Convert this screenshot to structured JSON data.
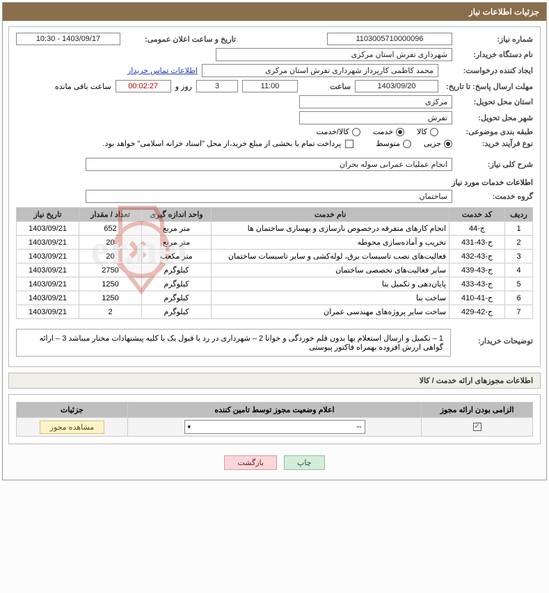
{
  "header": {
    "title": "جزئیات اطلاعات نیاز"
  },
  "form": {
    "need_number_label": "شماره نیاز:",
    "need_number": "1103005710000096",
    "public_date_label": "تاریخ و ساعت اعلان عمومی:",
    "public_date": "1403/09/17 - 10:30",
    "buyer_device_label": "نام دستگاه خریدار:",
    "buyer_device": "شهرداری تفرش استان مرکزی",
    "request_creator_label": "ایجاد کننده درخواست:",
    "request_creator": "محمد کاظمی کارپرداز شهرداری تفرش استان مرکزی",
    "buyer_contact_link": "اطلاعات تماس خریدار",
    "deadline_label": "مهلت ارسال پاسخ: تا تاریخ:",
    "deadline_date": "1403/09/20",
    "hour_label": "ساعت",
    "deadline_hour": "11:00",
    "days_val": "3",
    "days_label": "روز و",
    "countdown": "00:02:27",
    "remaining_label": "ساعت باقی مانده",
    "delivery_province_label": "استان محل تحویل:",
    "delivery_province": "مرکزی",
    "delivery_city_label": "شهر محل تحویل:",
    "delivery_city": "تفرش",
    "subject_class_label": "طبقه بندی موضوعی:",
    "radio_goods": "کالا",
    "radio_service": "خدمت",
    "radio_both": "کالا/خدمت",
    "purchase_type_label": "نوع فرآیند خرید:",
    "radio_partial": "جزیی",
    "radio_medium": "متوسط",
    "payment_note": "پرداخت تمام یا بخشی از مبلغ خرید،از محل \"اسناد خزانه اسلامی\" خواهد بود.",
    "overall_desc_label": "شرح کلی نیاز:",
    "overall_desc": "انجام عملیات عمرانی سوله بحران",
    "services_info_title": "اطلاعات خدمات مورد نیاز",
    "service_group_label": "گروه خدمت:",
    "service_group": "ساختمان",
    "buyer_notes_label": "توضیحات خریدار:",
    "buyer_notes": "1 – تکمیل و ارسال استعلام بها بدون قلم خوردگی و خوانا 2 – شهرداری در رد یا قبول یک یا کلیه پیشنهادات مختار میباشد 3 – ارائه گواهی ارزش افزوده بهمراه فاکتور پیوستی"
  },
  "table": {
    "headers": {
      "row": "ردیف",
      "code": "کد خدمت",
      "name": "نام خدمت",
      "unit": "واحد اندازه گیری",
      "qty": "تعداد / مقدار",
      "date": "تاریخ نیاز"
    },
    "rows": [
      {
        "n": "1",
        "code": "ج-44",
        "name": "انجام کارهای متفرقه درخصوص بازسازی و بهسازی ساختمان ها",
        "unit": "متر مربع",
        "qty": "652",
        "date": "1403/09/21"
      },
      {
        "n": "2",
        "code": "ج-43-431",
        "name": "تخریب و آماده‌سازی محوطه",
        "unit": "متر مربع",
        "qty": "20",
        "date": "1403/09/21"
      },
      {
        "n": "3",
        "code": "ج-43-432",
        "name": "فعالیت‌های نصب تاسیسات برق، لوله‌کشی و سایر تاسیسات ساختمان",
        "unit": "متر مکعب",
        "qty": "20",
        "date": "1403/09/21"
      },
      {
        "n": "4",
        "code": "ج-43-439",
        "name": "سایر فعالیت‌های تخصصی ساختمان",
        "unit": "کیلوگرم",
        "qty": "2750",
        "date": "1403/09/21"
      },
      {
        "n": "5",
        "code": "ج-43-433",
        "name": "پایان‌دهی و تکمیل بنا",
        "unit": "کیلوگرم",
        "qty": "1250",
        "date": "1403/09/21"
      },
      {
        "n": "6",
        "code": "ج-41-410",
        "name": "ساخت بنا",
        "unit": "کیلوگرم",
        "qty": "1250",
        "date": "1403/09/21"
      },
      {
        "n": "7",
        "code": "ج-42-429",
        "name": "ساخت سایر پروژه‌های مهندسی عمران",
        "unit": "کیلوگرم",
        "qty": "2",
        "date": "1403/09/21"
      }
    ]
  },
  "license": {
    "section_title": "اطلاعات مجوزهای ارائه خدمت / کالا",
    "headers": {
      "mandatory": "الزامی بودن ارائه مجوز",
      "status": "اعلام وضعیت مجوز توسط تامین کننده",
      "details": "جزئیات"
    },
    "select_placeholder": "--",
    "view_btn": "مشاهده مجوز"
  },
  "footer": {
    "print": "چاپ",
    "back": "بازگشت"
  },
  "colors": {
    "header_bg": "#8a6d4a",
    "th_bg": "#bfbfbf",
    "border": "#bbbbbb",
    "link": "#1a3fc7",
    "watermark_stroke": "#c4402f",
    "watermark_fill": "#d8d8d8"
  }
}
